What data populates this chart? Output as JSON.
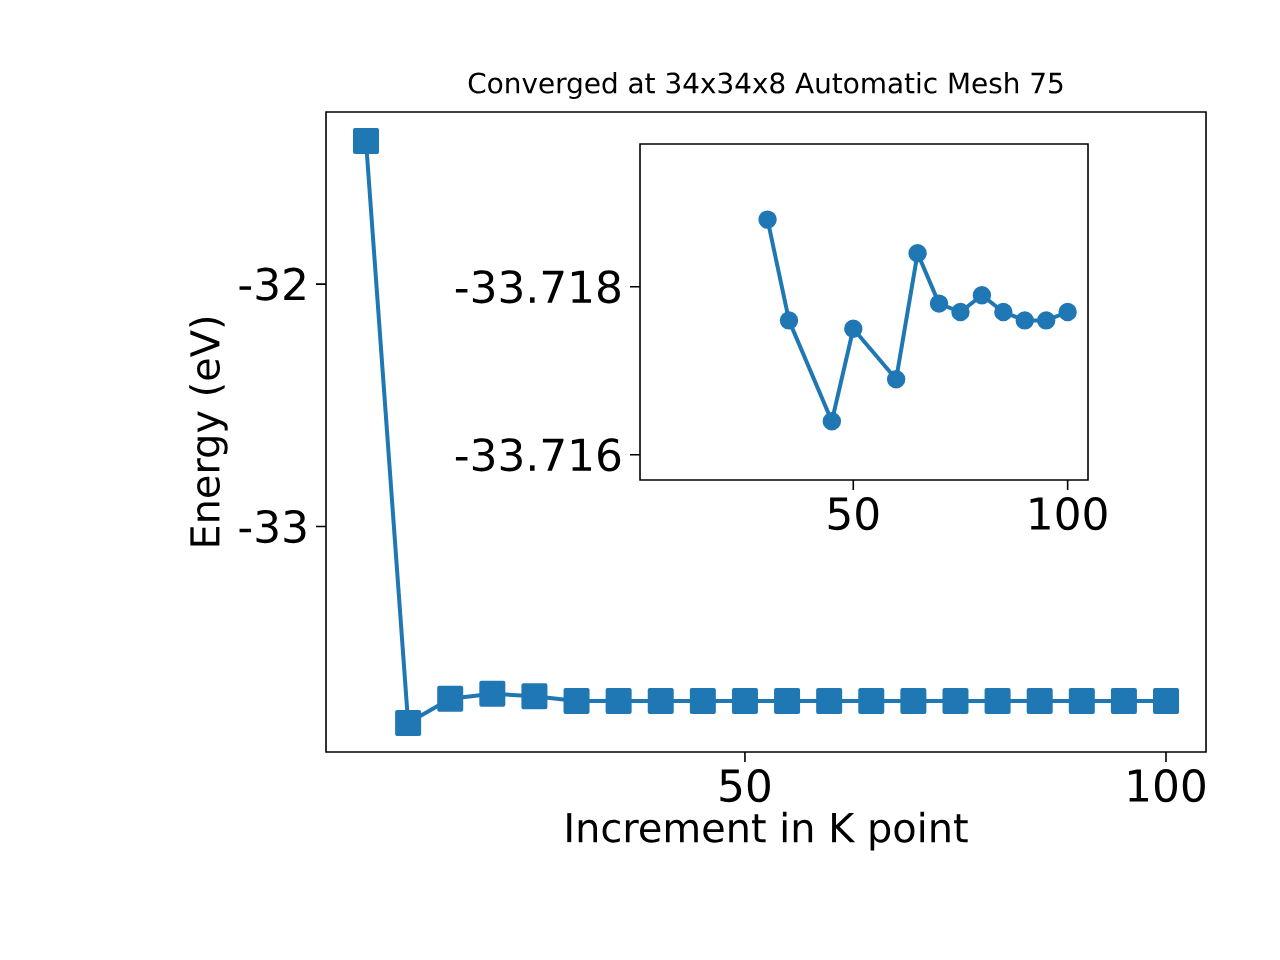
{
  "chart_data": [
    {
      "type": "line",
      "title": "Converged at 34x34x8 Automatic Mesh 75",
      "xlabel": "Increment in K point",
      "ylabel": "Energy (eV)",
      "color": "#1f77b4",
      "marker": "square",
      "line_style": "solid",
      "grid": false,
      "x": [
        5,
        10,
        15,
        20,
        25,
        30,
        35,
        40,
        45,
        50,
        55,
        60,
        65,
        70,
        75,
        80,
        85,
        90,
        95,
        100
      ],
      "values": [
        -31.41,
        -33.81,
        -33.71,
        -33.69,
        -33.7,
        -33.72,
        -33.72,
        -33.72,
        -33.72,
        -33.72,
        -33.72,
        -33.72,
        -33.72,
        -33.72,
        -33.72,
        -33.72,
        -33.72,
        -33.72,
        -33.72,
        -33.72
      ],
      "xlim": [
        0.25,
        104.75
      ],
      "ylim": [
        -33.93,
        -31.29
      ],
      "xticks": [
        50,
        100
      ],
      "yticks": [
        -33,
        -32
      ]
    },
    {
      "type": "line",
      "color": "#1f77b4",
      "marker": "circle",
      "line_style": "solid",
      "grid": false,
      "x": [
        30,
        35,
        45,
        50,
        60,
        65,
        70,
        75,
        80,
        85,
        90,
        95,
        100
      ],
      "values": [
        -33.7188,
        -33.7176,
        -33.7164,
        -33.7175,
        -33.7169,
        -33.7184,
        -33.7178,
        -33.7177,
        -33.7179,
        -33.7177,
        -33.7176,
        -33.7176,
        -33.7177
      ],
      "xlim": [
        0.25,
        104.75
      ],
      "ylim": [
        -33.7157,
        -33.7197
      ],
      "xticks": [
        50,
        100
      ],
      "yticks": [
        -33.718,
        -33.716
      ]
    }
  ]
}
